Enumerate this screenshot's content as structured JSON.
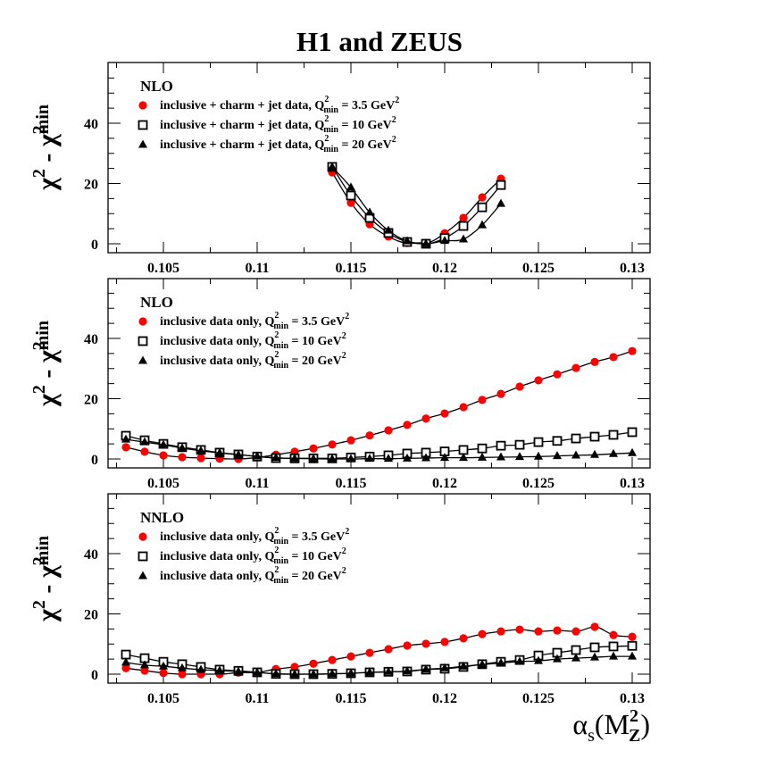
{
  "title": "H1 and ZEUS",
  "colors": {
    "red": "#ff0000",
    "black": "#000000"
  },
  "chart_data": [
    {
      "type": "scatter",
      "panel_label": "NLO",
      "ylabel": "χ² - χ²min",
      "ylabel_parts": {
        "base1": "χ",
        "sup1": "2",
        "sep": " - ",
        "base2": "χ",
        "sup2": "2",
        "sub2": "min"
      },
      "xlabel": "",
      "xlim": [
        0.102,
        0.131
      ],
      "ylim": [
        -2,
        60
      ],
      "xticks": [
        "0.105",
        "0.11",
        "0.115",
        "0.12",
        "0.125",
        "0.13"
      ],
      "yticks": [
        "0",
        "20",
        "40"
      ],
      "legend_position": "top-left",
      "series": [
        {
          "name": "inclusive + charm + jet data, Q²min = 3.5 GeV²",
          "marker": "circle",
          "legend": {
            "text": "inclusive + charm + jet data, Q",
            "sup": "2",
            "sub": "min",
            "rest": " =  3.5 GeV",
            "sup2": "2"
          },
          "x": [
            0.114,
            0.115,
            0.116,
            0.117,
            0.118,
            0.119,
            0.12,
            0.121,
            0.122,
            0.123
          ],
          "y": [
            23.7,
            13.6,
            6.5,
            2.4,
            0.3,
            0.3,
            3.5,
            8.6,
            15.4,
            21.6
          ]
        },
        {
          "name": "inclusive + charm + jet data, Q²min = 10 GeV²",
          "marker": "square",
          "legend": {
            "text": "inclusive + charm + jet data, Q",
            "sup": "2",
            "sub": "min",
            "rest": " =  10 GeV",
            "sup2": "2"
          },
          "x": [
            0.114,
            0.115,
            0.116,
            0.117,
            0.118,
            0.119,
            0.12,
            0.121,
            0.122,
            0.123
          ],
          "y": [
            25.5,
            16.0,
            8.6,
            3.6,
            0.6,
            0.0,
            1.9,
            5.9,
            12.1,
            19.5
          ]
        },
        {
          "name": "inclusive + charm + jet data, Q²min = 20 GeV²",
          "marker": "triangle",
          "legend": {
            "text": "inclusive + charm + jet data, Q",
            "sup": "2",
            "sub": "min",
            "rest": " =  20 GeV",
            "sup2": "2"
          },
          "x": [
            0.114,
            0.115,
            0.116,
            0.117,
            0.118,
            0.119,
            0.12,
            0.121,
            0.122,
            0.123
          ],
          "y": [
            25.5,
            18.7,
            10.4,
            4.4,
            0.9,
            0.0,
            1.0,
            1.5,
            6.2,
            13.3
          ]
        }
      ]
    },
    {
      "type": "scatter",
      "panel_label": "NLO",
      "ylabel": "χ² - χ²min",
      "ylabel_parts": {
        "base1": "χ",
        "sup1": "2",
        "sep": " - ",
        "base2": "χ",
        "sup2": "2",
        "sub2": "min"
      },
      "xlabel": "",
      "xlim": [
        0.102,
        0.131
      ],
      "ylim": [
        -2,
        60
      ],
      "xticks": [
        "0.105",
        "0.11",
        "0.115",
        "0.12",
        "0.125",
        "0.13"
      ],
      "yticks": [
        "0",
        "20",
        "40"
      ],
      "legend_position": "top-left",
      "series": [
        {
          "name": "inclusive data only, Q²min = 3.5 GeV²",
          "marker": "circle",
          "legend": {
            "text": "inclusive data only, Q",
            "sup": "2",
            "sub": "min",
            "rest": " =  3.5 GeV",
            "sup2": "2"
          },
          "x": [
            0.103,
            0.104,
            0.105,
            0.106,
            0.107,
            0.108,
            0.109,
            0.11,
            0.111,
            0.112,
            0.113,
            0.114,
            0.115,
            0.116,
            0.117,
            0.118,
            0.119,
            0.12,
            0.121,
            0.122,
            0.123,
            0.124,
            0.125,
            0.126,
            0.127,
            0.128,
            0.129,
            0.13
          ],
          "y": [
            3.9,
            2.4,
            1.2,
            0.6,
            0.3,
            0.1,
            0.0,
            0.5,
            1.4,
            2.4,
            3.5,
            4.8,
            6.2,
            7.8,
            9.5,
            11.3,
            13.4,
            15.1,
            17.2,
            19.6,
            21.6,
            24.0,
            26.1,
            28.1,
            30.2,
            32.2,
            33.8,
            35.8
          ]
        },
        {
          "name": "inclusive data only, Q²min = 10 GeV²",
          "marker": "square",
          "legend": {
            "text": "inclusive data only, Q",
            "sup": "2",
            "sub": "min",
            "rest": " =  10 GeV",
            "sup2": "2"
          },
          "x": [
            0.103,
            0.104,
            0.105,
            0.106,
            0.107,
            0.108,
            0.109,
            0.11,
            0.111,
            0.112,
            0.113,
            0.114,
            0.115,
            0.116,
            0.117,
            0.118,
            0.119,
            0.12,
            0.121,
            0.122,
            0.123,
            0.124,
            0.125,
            0.126,
            0.127,
            0.128,
            0.129,
            0.13
          ],
          "y": [
            7.7,
            6.2,
            5.0,
            3.9,
            3.0,
            2.1,
            1.5,
            0.8,
            0.3,
            0.2,
            0.2,
            0.2,
            0.5,
            0.8,
            1.2,
            1.8,
            2.1,
            2.5,
            3.0,
            3.5,
            4.4,
            4.7,
            5.6,
            6.0,
            6.8,
            7.4,
            8.0,
            8.9
          ]
        },
        {
          "name": "inclusive data only, Q²min = 20 GeV²",
          "marker": "triangle",
          "legend": {
            "text": "inclusive data only, Q",
            "sup": "2",
            "sub": "min",
            "rest": " =  20 GeV",
            "sup2": "2"
          },
          "x": [
            0.103,
            0.104,
            0.105,
            0.106,
            0.107,
            0.108,
            0.109,
            0.11,
            0.111,
            0.112,
            0.113,
            0.114,
            0.115,
            0.116,
            0.117,
            0.118,
            0.119,
            0.12,
            0.121,
            0.122,
            0.123,
            0.124,
            0.125,
            0.126,
            0.127,
            0.128,
            0.129,
            0.13
          ],
          "y": [
            6.5,
            5.6,
            4.7,
            3.6,
            2.7,
            2.0,
            1.4,
            0.9,
            0.4,
            0.2,
            0.1,
            0.0,
            0.0,
            0.1,
            0.1,
            0.2,
            0.3,
            0.4,
            0.4,
            0.5,
            0.6,
            0.7,
            0.8,
            1.0,
            1.2,
            1.4,
            1.7,
            2.0
          ]
        }
      ]
    },
    {
      "type": "scatter",
      "panel_label": "NNLO",
      "ylabel": "χ² - χ²min",
      "ylabel_parts": {
        "base1": "χ",
        "sup1": "2",
        "sep": " - ",
        "base2": "χ",
        "sup2": "2",
        "sub2": "min"
      },
      "xlabel": "αs(M²Z)",
      "xlabel_parts": {
        "base": "α",
        "sub": "s",
        "open": "(M",
        "sup": "2",
        "sub2": "Z",
        "close": ")"
      },
      "xlim": [
        0.102,
        0.131
      ],
      "ylim": [
        -2,
        60
      ],
      "xticks": [
        "0.105",
        "0.11",
        "0.115",
        "0.12",
        "0.125",
        "0.13"
      ],
      "yticks": [
        "0",
        "20",
        "40"
      ],
      "legend_position": "top-left",
      "series": [
        {
          "name": "inclusive data only, Q²min = 3.5 GeV²",
          "marker": "circle",
          "legend": {
            "text": "inclusive data only, Q",
            "sup": "2",
            "sub": "min",
            "rest": " =  3.5 GeV",
            "sup2": "2"
          },
          "x": [
            0.103,
            0.104,
            0.105,
            0.106,
            0.107,
            0.108,
            0.109,
            0.11,
            0.111,
            0.112,
            0.113,
            0.114,
            0.115,
            0.116,
            0.117,
            0.118,
            0.119,
            0.12,
            0.121,
            0.122,
            0.123,
            0.124,
            0.125,
            0.126,
            0.127,
            0.128,
            0.129,
            0.13
          ],
          "y": [
            2.0,
            1.2,
            0.4,
            0.0,
            0.0,
            0.0,
            0.5,
            0.6,
            1.7,
            2.4,
            3.5,
            4.7,
            5.9,
            7.1,
            8.3,
            9.5,
            10.1,
            10.7,
            11.9,
            13.3,
            14.2,
            14.8,
            14.2,
            14.5,
            14.2,
            15.7,
            13.0,
            12.4
          ]
        },
        {
          "name": "inclusive data only, Q²min = 10 GeV²",
          "marker": "square",
          "legend": {
            "text": "inclusive data only, Q",
            "sup": "2",
            "sub": "min",
            "rest": " =  10 GeV",
            "sup2": "2"
          },
          "x": [
            0.103,
            0.104,
            0.105,
            0.106,
            0.107,
            0.108,
            0.109,
            0.11,
            0.111,
            0.112,
            0.113,
            0.114,
            0.115,
            0.116,
            0.117,
            0.118,
            0.119,
            0.12,
            0.121,
            0.122,
            0.123,
            0.124,
            0.125,
            0.126,
            0.127,
            0.128,
            0.129,
            0.13
          ],
          "y": [
            6.5,
            5.3,
            4.1,
            3.3,
            2.4,
            1.5,
            1.1,
            0.6,
            0.1,
            0.0,
            0.0,
            0.1,
            0.3,
            0.6,
            0.8,
            0.9,
            1.5,
            1.8,
            2.4,
            3.3,
            4.1,
            4.7,
            6.2,
            7.1,
            8.0,
            8.9,
            9.2,
            9.4
          ]
        },
        {
          "name": "inclusive data only, Q²min = 20 GeV²",
          "marker": "triangle",
          "legend": {
            "text": "inclusive data only, Q",
            "sup": "2",
            "sub": "min",
            "rest": " =  20 GeV",
            "sup2": "2"
          },
          "x": [
            0.103,
            0.104,
            0.105,
            0.106,
            0.107,
            0.108,
            0.109,
            0.11,
            0.111,
            0.112,
            0.113,
            0.114,
            0.115,
            0.116,
            0.117,
            0.118,
            0.119,
            0.12,
            0.121,
            0.122,
            0.123,
            0.124,
            0.125,
            0.126,
            0.127,
            0.128,
            0.129,
            0.13
          ],
          "y": [
            3.9,
            3.0,
            2.6,
            2.0,
            1.5,
            1.2,
            0.9,
            0.6,
            0.1,
            0.0,
            0.0,
            0.1,
            0.3,
            0.6,
            0.8,
            1.0,
            1.6,
            2.0,
            2.6,
            3.2,
            3.7,
            4.2,
            4.4,
            5.0,
            5.3,
            5.6,
            5.9,
            5.9
          ]
        }
      ]
    }
  ]
}
